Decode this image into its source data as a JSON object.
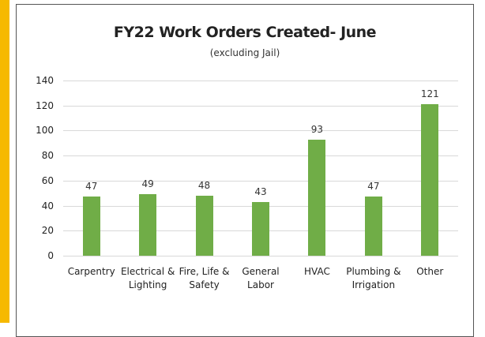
{
  "chart_data": {
    "type": "bar",
    "title": "FY22 Work Orders Created- June",
    "subtitle": "(excluding Jail)",
    "categories": [
      "Carpentry",
      "Electrical & Lighting",
      "Fire, Life & Safety",
      "General Labor",
      "HVAC",
      "Plumbing & Irrigation",
      "Other"
    ],
    "values": [
      47,
      49,
      48,
      43,
      93,
      47,
      121
    ],
    "color": "#70ad47",
    "ylim": [
      0,
      140
    ],
    "yticks": [
      0,
      20,
      40,
      60,
      80,
      100,
      120,
      140
    ],
    "grid": true
  }
}
